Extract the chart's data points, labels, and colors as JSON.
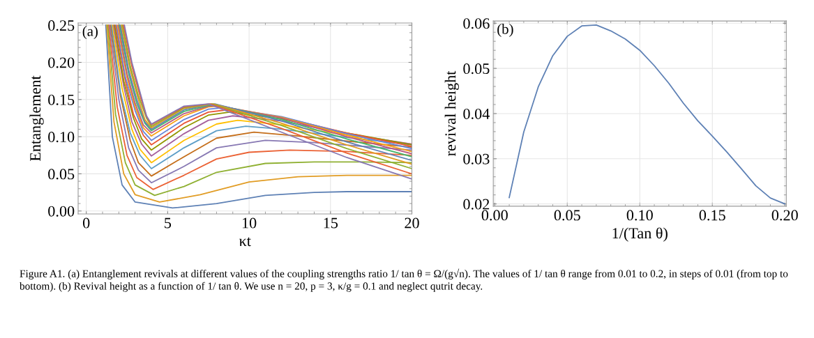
{
  "chart_data": [
    {
      "type": "line",
      "xlabel": "κt",
      "ylabel": "Entanglement",
      "annotations": [
        "(a)",
        "Figure A1. (a) Entanglement revivals at different values of the coupling strengths ratio 1/ tan θ = Ω/(g√n). The values of 1/ tan θ range from 0.01 to 0.2, in steps of 0.01 (from top to bottom). (b) Revival height as a function of 1/ tan θ. We use n = 20, p = 3, κ/g = 0.1 and neglect qutrit decay."
      ],
      "xlim": [
        -0.5,
        20
      ],
      "ylim": [
        -0.004,
        0.253
      ],
      "xticks": [
        0,
        5,
        10,
        15,
        20
      ],
      "yticks": [
        {
          "value": 0,
          "label": "0.00"
        },
        {
          "value": 0.05,
          "label": "0.05"
        },
        {
          "value": 0.1,
          "label": "0.10"
        },
        {
          "value": 0.15,
          "label": "0.15"
        },
        {
          "value": 0.2,
          "label": "0.20"
        },
        {
          "value": 0.25,
          "label": "0.25"
        }
      ],
      "grid": true,
      "marker": "none",
      "line_style": "solid",
      "series": [
        {
          "color": "#5e81b5",
          "x": [
            1.2,
            1.6,
            2.2,
            3,
            5.3,
            8,
            11,
            14,
            16,
            20
          ],
          "values": [
            0.25,
            0.1,
            0.035,
            0.012,
            0.004,
            0.01,
            0.021,
            0.025,
            0.026,
            0.026
          ]
        },
        {
          "color": "#e19c24",
          "x": [
            1.26,
            1.7,
            2.3,
            3,
            4.5,
            7,
            10,
            13,
            16,
            20
          ],
          "values": [
            0.25,
            0.12,
            0.05,
            0.022,
            0.012,
            0.022,
            0.039,
            0.046,
            0.048,
            0.048
          ]
        },
        {
          "color": "#8fb032",
          "x": [
            1.32,
            1.8,
            2.4,
            3,
            4.2,
            6,
            8,
            11,
            14,
            17,
            20
          ],
          "values": [
            0.25,
            0.13,
            0.065,
            0.035,
            0.021,
            0.033,
            0.052,
            0.064,
            0.066,
            0.066,
            0.065
          ]
        },
        {
          "color": "#eb6235",
          "x": [
            1.38,
            1.9,
            2.5,
            3.1,
            4.1,
            6,
            8,
            10,
            12.5,
            16,
            20
          ],
          "values": [
            0.25,
            0.14,
            0.075,
            0.045,
            0.029,
            0.048,
            0.07,
            0.079,
            0.082,
            0.08,
            0.075
          ]
        },
        {
          "color": "#8778b3",
          "x": [
            1.44,
            2,
            2.6,
            3.2,
            4,
            6,
            8,
            11,
            14,
            17,
            20
          ],
          "values": [
            0.25,
            0.15,
            0.085,
            0.055,
            0.038,
            0.06,
            0.085,
            0.095,
            0.092,
            0.087,
            0.082
          ]
        },
        {
          "color": "#c56e1a",
          "x": [
            1.5,
            2.1,
            2.7,
            3.2,
            4,
            6,
            8,
            10.3,
            13,
            16,
            20
          ],
          "values": [
            0.25,
            0.155,
            0.095,
            0.065,
            0.047,
            0.073,
            0.098,
            0.106,
            0.101,
            0.094,
            0.086
          ]
        },
        {
          "color": "#5d9ec7",
          "x": [
            1.56,
            2.1,
            2.7,
            3.3,
            4,
            6,
            8,
            9.8,
            12,
            16,
            20
          ],
          "values": [
            0.25,
            0.16,
            0.105,
            0.075,
            0.057,
            0.085,
            0.108,
            0.114,
            0.11,
            0.099,
            0.089
          ]
        },
        {
          "color": "#ffbf00",
          "x": [
            1.62,
            2.2,
            2.8,
            3.3,
            4,
            6,
            8,
            9.3,
            12,
            16,
            20
          ],
          "values": [
            0.25,
            0.165,
            0.11,
            0.083,
            0.065,
            0.095,
            0.117,
            0.122,
            0.116,
            0.102,
            0.09
          ]
        },
        {
          "color": "#a5609d",
          "x": [
            1.68,
            2.3,
            2.8,
            3.4,
            4,
            6,
            7.5,
            9,
            12,
            16,
            20
          ],
          "values": [
            0.25,
            0.168,
            0.12,
            0.09,
            0.074,
            0.104,
            0.122,
            0.128,
            0.121,
            0.104,
            0.09
          ]
        },
        {
          "color": "#929600",
          "x": [
            1.74,
            2.3,
            2.9,
            3.4,
            4,
            6,
            7.5,
            8.8,
            12,
            16,
            20
          ],
          "values": [
            0.25,
            0.175,
            0.125,
            0.097,
            0.082,
            0.112,
            0.129,
            0.133,
            0.124,
            0.105,
            0.089
          ]
        },
        {
          "color": "#e95536",
          "x": [
            1.8,
            2.4,
            2.9,
            3.5,
            4,
            6,
            7.5,
            8.6,
            12,
            16,
            20
          ],
          "values": [
            0.25,
            0.175,
            0.13,
            0.102,
            0.089,
            0.118,
            0.133,
            0.136,
            0.126,
            0.105,
            0.087
          ]
        },
        {
          "color": "#6685d9",
          "x": [
            1.86,
            2.4,
            3,
            3.5,
            4,
            6,
            7.5,
            8.4,
            12,
            16,
            20
          ],
          "values": [
            0.25,
            0.18,
            0.135,
            0.107,
            0.095,
            0.123,
            0.137,
            0.139,
            0.127,
            0.104,
            0.084
          ]
        },
        {
          "color": "#f89f13",
          "x": [
            1.92,
            2.5,
            3,
            3.5,
            4,
            6,
            7.5,
            8.2,
            12,
            16,
            20
          ],
          "values": [
            0.25,
            0.18,
            0.14,
            0.112,
            0.101,
            0.128,
            0.14,
            0.141,
            0.126,
            0.102,
            0.08
          ]
        },
        {
          "color": "#bc5b80",
          "x": [
            1.98,
            2.5,
            3,
            3.5,
            4,
            6,
            7.5,
            8.1,
            12,
            16,
            20
          ],
          "values": [
            0.25,
            0.185,
            0.145,
            0.116,
            0.105,
            0.131,
            0.141,
            0.142,
            0.125,
            0.1,
            0.077
          ]
        },
        {
          "color": "#47b66d",
          "x": [
            2.04,
            2.6,
            3.1,
            3.6,
            4,
            6,
            7.5,
            8,
            12,
            16,
            20
          ],
          "values": [
            0.25,
            0.185,
            0.145,
            0.118,
            0.108,
            0.134,
            0.142,
            0.143,
            0.123,
            0.097,
            0.073
          ]
        },
        {
          "color": "#5e81b5",
          "x": [
            2.1,
            2.6,
            3.1,
            3.6,
            4,
            6,
            7.5,
            7.9,
            12,
            16,
            20
          ],
          "values": [
            0.25,
            0.19,
            0.15,
            0.12,
            0.11,
            0.136,
            0.143,
            0.144,
            0.121,
            0.093,
            0.068
          ]
        },
        {
          "color": "#e19c24",
          "x": [
            2.16,
            2.7,
            3.2,
            3.6,
            4,
            6,
            7.8,
            12,
            16,
            20
          ],
          "values": [
            0.25,
            0.19,
            0.15,
            0.123,
            0.112,
            0.138,
            0.144,
            0.118,
            0.089,
            0.063
          ]
        },
        {
          "color": "#8fb032",
          "x": [
            2.22,
            2.7,
            3.2,
            3.7,
            4,
            6,
            7.7,
            12,
            16,
            20
          ],
          "values": [
            0.25,
            0.195,
            0.155,
            0.125,
            0.114,
            0.139,
            0.144,
            0.115,
            0.084,
            0.057
          ]
        },
        {
          "color": "#eb6235",
          "x": [
            2.28,
            2.8,
            3.3,
            3.7,
            4,
            6,
            7.6,
            12,
            16,
            20
          ],
          "values": [
            0.25,
            0.195,
            0.155,
            0.127,
            0.116,
            0.14,
            0.144,
            0.111,
            0.078,
            0.05
          ]
        },
        {
          "color": "#8778b3",
          "x": [
            2.34,
            2.8,
            3.3,
            3.7,
            4,
            6,
            7.5,
            12,
            16,
            20
          ],
          "values": [
            0.25,
            0.2,
            0.16,
            0.128,
            0.117,
            0.141,
            0.144,
            0.106,
            0.072,
            0.043
          ]
        }
      ]
    },
    {
      "type": "line",
      "xlabel": "1/(Tan θ)",
      "ylabel": "revival height",
      "annotations": [
        "(b)"
      ],
      "x": [
        0.01,
        0.02,
        0.03,
        0.04,
        0.05,
        0.06,
        0.07,
        0.08,
        0.09,
        0.1,
        0.11,
        0.12,
        0.13,
        0.14,
        0.15,
        0.16,
        0.17,
        0.18,
        0.19,
        0.2
      ],
      "xlim": [
        -0.001,
        0.201
      ],
      "ylim": [
        0.0195,
        0.0605
      ],
      "xticks": [
        {
          "value": 0,
          "label": "0.00"
        },
        {
          "value": 0.05,
          "label": "0.05"
        },
        {
          "value": 0.1,
          "label": "0.10"
        },
        {
          "value": 0.15,
          "label": "0.15"
        },
        {
          "value": 0.2,
          "label": "0.20"
        }
      ],
      "yticks": [
        0.02,
        0.03,
        0.04,
        0.05,
        0.06
      ],
      "grid": true,
      "marker": "none",
      "line_style": "solid",
      "series": [
        {
          "color": "#5e81b5",
          "values": [
            0.0214,
            0.0359,
            0.0459,
            0.0528,
            0.0571,
            0.0594,
            0.0596,
            0.0583,
            0.0565,
            0.054,
            0.0506,
            0.0467,
            0.0423,
            0.0384,
            0.035,
            0.0315,
            0.0278,
            0.024,
            0.0213,
            0.02
          ]
        }
      ]
    }
  ]
}
